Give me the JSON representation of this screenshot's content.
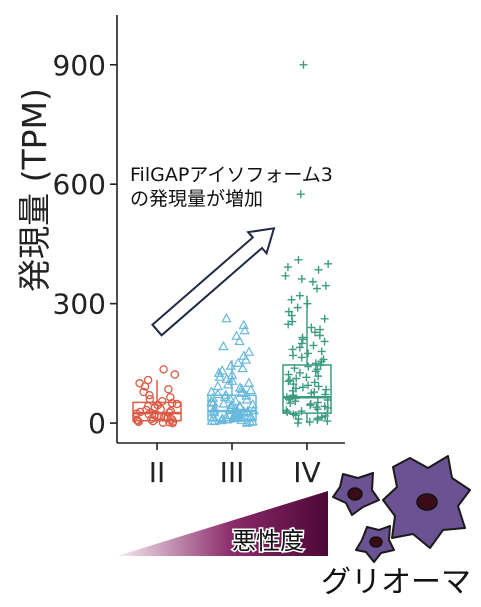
{
  "chart_data": {
    "type": "box",
    "title": "",
    "xlabel": "",
    "ylabel": "発現量 (TPM)",
    "categories": [
      "II",
      "III",
      "IV"
    ],
    "ylim": [
      -50,
      1025
    ],
    "yticks": [
      0,
      300,
      600,
      900
    ],
    "grid": false,
    "colors": [
      "#dd5a45",
      "#67b9dc",
      "#3b9c80"
    ],
    "markers": [
      "circle",
      "triangle",
      "plus"
    ],
    "boxes": [
      {
        "whisker_low": 0,
        "q1": 6,
        "median": 25,
        "q3": 52,
        "whisker_high": 108
      },
      {
        "whisker_low": 0,
        "q1": 6,
        "median": 30,
        "q3": 70,
        "whisker_high": 158
      },
      {
        "whisker_low": 0,
        "q1": 25,
        "median": 65,
        "q3": 146,
        "whisker_high": 320
      }
    ],
    "points": [
      [
        135,
        122,
        108,
        100,
        92,
        85,
        78,
        70,
        65,
        60,
        55,
        50,
        48,
        45,
        42,
        40,
        38,
        35,
        33,
        30,
        28,
        26,
        24,
        22,
        20,
        18,
        16,
        14,
        12,
        10,
        9,
        8,
        6,
        5,
        4,
        3,
        2,
        1,
        0
      ],
      [
        262,
        245,
        232,
        218,
        205,
        192,
        178,
        168,
        158,
        150,
        143,
        137,
        131,
        125,
        120,
        115,
        110,
        105,
        100,
        96,
        92,
        88,
        85,
        82,
        78,
        75,
        72,
        70,
        68,
        65,
        62,
        60,
        58,
        55,
        52,
        50,
        48,
        46,
        44,
        42,
        40,
        38,
        36,
        34,
        32,
        31,
        30,
        29,
        28,
        27,
        26,
        25,
        24,
        22,
        20,
        19,
        18,
        17,
        16,
        15,
        14,
        13,
        12,
        11,
        10,
        9,
        8,
        7,
        6,
        5,
        4,
        3,
        2,
        1,
        0
      ],
      [
        900,
        575,
        410,
        400,
        392,
        385,
        370,
        362,
        355,
        345,
        338,
        320,
        310,
        300,
        290,
        280,
        270,
        262,
        255,
        248,
        240,
        235,
        228,
        220,
        215,
        210,
        205,
        200,
        195,
        190,
        185,
        180,
        175,
        170,
        165,
        160,
        155,
        150,
        145,
        142,
        138,
        135,
        130,
        126,
        122,
        118,
        115,
        112,
        108,
        105,
        102,
        98,
        95,
        92,
        90,
        87,
        84,
        81,
        78,
        75,
        72,
        70,
        68,
        65,
        62,
        60,
        58,
        55,
        52,
        50,
        48,
        45,
        42,
        40,
        38,
        35,
        32,
        30,
        28,
        25,
        22,
        20,
        18,
        15,
        12,
        10,
        8,
        5,
        3,
        0
      ]
    ],
    "annotation": [
      "FilGAPアイソフォーム3",
      "の発現量が増加"
    ]
  },
  "malignancy_scale": {
    "label": "悪性度",
    "gradient": [
      "#f6ecf1",
      "#8a2a6a",
      "#4d0737"
    ]
  },
  "illustration": {
    "label": "グリオーマ",
    "icon": "glioma-cell-icon",
    "cell_color": "#6b5293",
    "nucleus_color": "#3b0b18"
  }
}
